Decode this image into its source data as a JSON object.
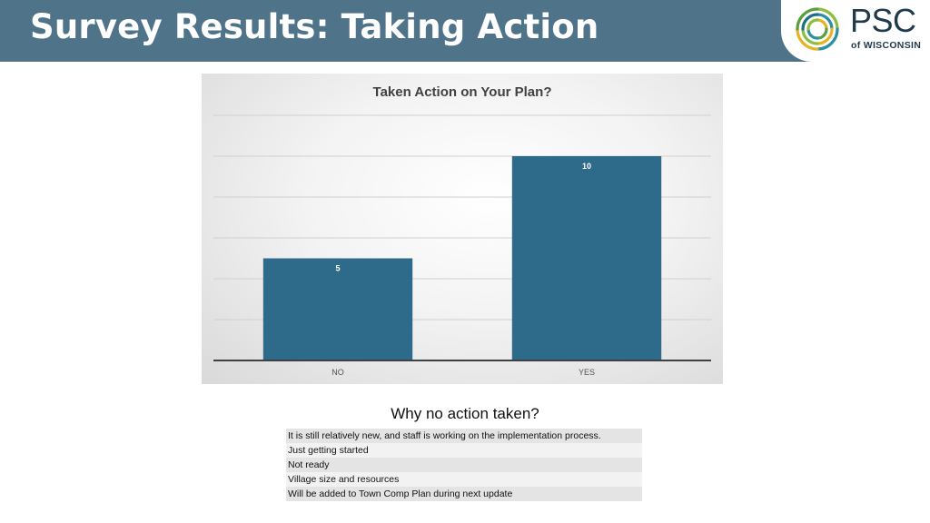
{
  "header": {
    "title": "Survey Results: Taking Action"
  },
  "logo": {
    "text": "PSC",
    "subtext": "of WISCONSIN",
    "icon": "psc-swirl-logo-icon"
  },
  "colors": {
    "header_bg": "#4f7389",
    "bar": "#2e6b8a",
    "logo_navy": "#1f3a4c"
  },
  "chart_data": {
    "type": "bar",
    "title": "Taken Action on Your Plan?",
    "categories": [
      "NO",
      "YES"
    ],
    "values": [
      5,
      10
    ],
    "data_labels": [
      "5",
      "10"
    ],
    "ylim": [
      0,
      12
    ],
    "grid": true,
    "legend": "none",
    "xlabel": "",
    "ylabel": ""
  },
  "why": {
    "title": "Why no action taken?",
    "reasons": [
      "It is still relatively new, and staff is working on the implementation process.",
      "Just getting started",
      "Not ready",
      "Village size and resources",
      "Will be added to Town Comp Plan during next update"
    ]
  }
}
